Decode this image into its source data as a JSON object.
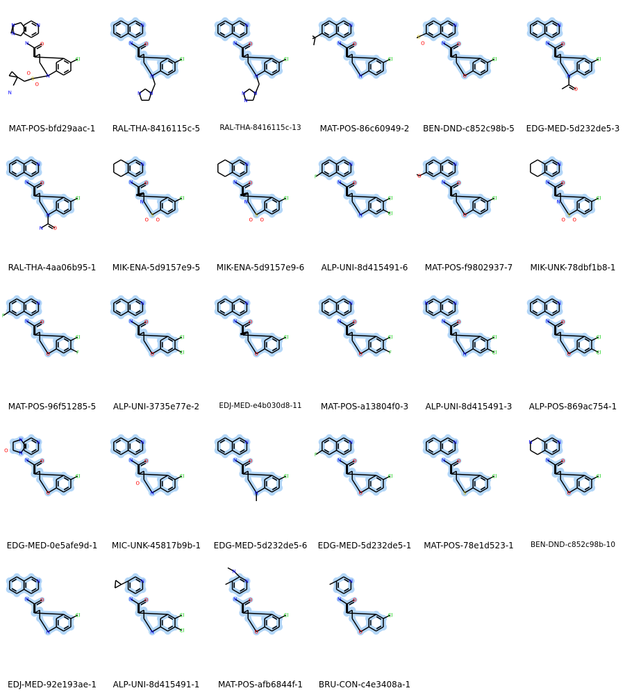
{
  "colors": {
    "background": "#ffffff",
    "bond": "#000000",
    "highlight": "#b3d6f7",
    "nitrogen": "#0000ff",
    "oxygen": "#ff0000",
    "chlorine": "#00cc00",
    "fluorine": "#33cc33",
    "sulfur": "#c8b400"
  },
  "molecules": [
    {
      "id": "MAT-POS-bfd29aac-1",
      "variant": "pyrazolopyridine-sulfonyl",
      "highlighted": false
    },
    {
      "id": "RAL-THA-8416115c-5",
      "variant": "isoquinoline-thq-imidazolylmethyl",
      "highlighted": true
    },
    {
      "id": "RAL-THA-8416115c-13",
      "variant": "isoquinoline-thq-triazolylmethyl",
      "highlighted": true,
      "small": true
    },
    {
      "id": "MAT-POS-86c60949-2",
      "variant": "tbu-alcohol-isoquinoline-thq",
      "highlighted": true
    },
    {
      "id": "BEN-DND-c852c98b-5",
      "variant": "mesyl-isoquinoline-chromane",
      "highlighted": true
    },
    {
      "id": "EDG-MED-5d232de5-3",
      "variant": "isoquinoline-thq-acetyl",
      "highlighted": true
    },
    {
      "id": "RAL-THA-4aa06b95-1",
      "variant": "isoquinoline-thq-urea",
      "highlighted": true
    },
    {
      "id": "MIK-ENA-5d9157e9-5",
      "variant": "thq-isoquinoline-benzothiazine-methyl",
      "highlighted": true
    },
    {
      "id": "MIK-ENA-5d9157e9-6",
      "variant": "thq-isoquinoline-benzothiazine-methyl-b",
      "highlighted": true
    },
    {
      "id": "ALP-UNI-8d415491-6",
      "variant": "fluoro-isoquinoline-thq-dichloro",
      "highlighted": true
    },
    {
      "id": "MAT-POS-f9802937-7",
      "variant": "methoxy-isoquinoline-chromane",
      "highlighted": true
    },
    {
      "id": "MIK-UNK-78dbf1b8-1",
      "variant": "thq-isoquinoline-benzothiazine",
      "highlighted": true
    },
    {
      "id": "MAT-POS-96f51285-5",
      "variant": "fluoro-isoquinoline-chromane-fluoro",
      "highlighted": true
    },
    {
      "id": "ALP-UNI-3735e77e-2",
      "variant": "isoquinoline-chromane-dichloro",
      "highlighted": true
    },
    {
      "id": "EDJ-MED-e4b030d8-11",
      "variant": "isoquinoline-methylchromane",
      "highlighted": true,
      "small": true
    },
    {
      "id": "MAT-POS-a13804f0-3",
      "variant": "isoquinoline-chromane-fluoro",
      "highlighted": true
    },
    {
      "id": "ALP-UNI-8d415491-3",
      "variant": "naphthyridine-thq-dichloro",
      "highlighted": true
    },
    {
      "id": "ALP-POS-869ac754-1",
      "variant": "isoquinoline-chromane-dichloro-b",
      "highlighted": true
    },
    {
      "id": "EDG-MED-0e5afe9d-1",
      "variant": "imidazolone-pyridine-chromane",
      "highlighted": true
    },
    {
      "id": "MIC-UNK-45817b9b-1",
      "variant": "isoquinoline-quinolinone",
      "highlighted": true
    },
    {
      "id": "EDG-MED-5d232de5-6",
      "variant": "isoquinoline-thq-methyl",
      "highlighted": true
    },
    {
      "id": "EDG-MED-5d232de5-1",
      "variant": "fluoro-isoquinoline-chromane",
      "highlighted": true
    },
    {
      "id": "MAT-POS-78e1d523-1",
      "variant": "isoquinoline-thiochromane",
      "highlighted": true
    },
    {
      "id": "BEN-DND-c852c98b-10",
      "variant": "thiq-isoquinoline-chromane",
      "highlighted": true,
      "small": true
    },
    {
      "id": "EDJ-MED-92e193ae-1",
      "variant": "isoquinoline-thq",
      "highlighted": true
    },
    {
      "id": "ALP-UNI-8d415491-1",
      "variant": "cyclopropylpyridine-thq-dichloro",
      "highlighted": true
    },
    {
      "id": "MAT-POS-afb6844f-1",
      "variant": "dimethylaminopyridine-chromane",
      "highlighted": true
    },
    {
      "id": "BRU-CON-c4e3408a-1",
      "variant": "methylpyridine-chromane",
      "highlighted": true
    }
  ]
}
